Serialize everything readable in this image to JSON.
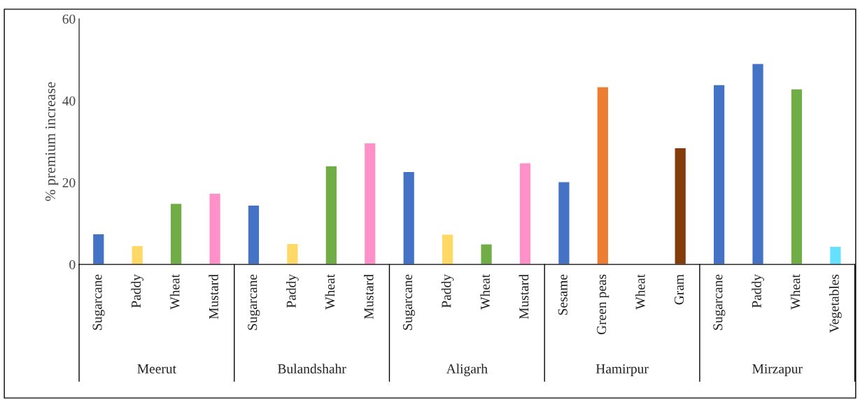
{
  "chart_data": {
    "type": "bar",
    "ylabel": "% premium increase",
    "categories": [
      "Sugarcane",
      "Paddy",
      "Wheat",
      "Mustard",
      "Sugarcane",
      "Paddy",
      "Wheat",
      "Mustard",
      "Sugarcane",
      "Paddy",
      "Wheat",
      "Mustard",
      "Sesame",
      "Green peas",
      "Wheat",
      "Gram",
      "Sugarcane",
      "Paddy",
      "Wheat",
      "Vegetables"
    ],
    "values": [
      7.5,
      4.6,
      14.9,
      17.4,
      14.5,
      5.1,
      24.1,
      29.7,
      22.7,
      7.4,
      5.0,
      24.8,
      20.2,
      43.4,
      null,
      28.5,
      43.9,
      49.1,
      42.9,
      4.4
    ],
    "colors": [
      "#4472c4",
      "#ffd966",
      "#70ad47",
      "#ff91c8",
      "#4472c4",
      "#ffd966",
      "#70ad47",
      "#ff91c8",
      "#4472c4",
      "#ffd966",
      "#70ad47",
      "#ff91c8",
      "#4472c4",
      "#ed7d31",
      "#70ad47",
      "#843c0c",
      "#4472c4",
      "#4472c4",
      "#70ad47",
      "#66e0ff"
    ],
    "annotations": [
      "Meerut",
      "Bulandshahr",
      "Aligarh",
      "Hamirpur",
      "Mirzapur"
    ],
    "ylim": [
      0,
      60
    ],
    "yticks": [
      0,
      20,
      40,
      60
    ],
    "grid": false,
    "legend": false
  }
}
